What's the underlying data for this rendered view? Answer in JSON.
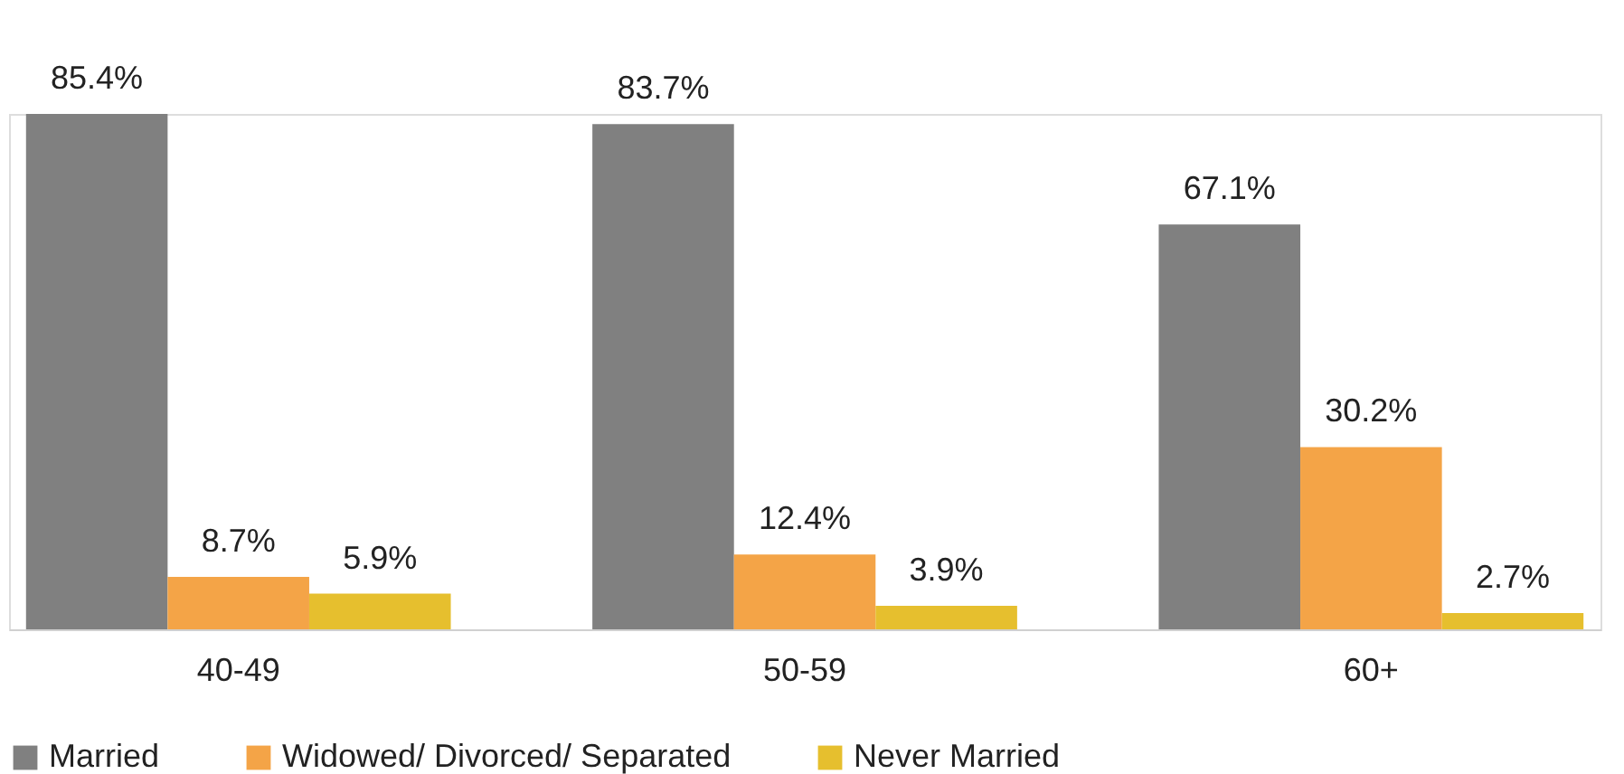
{
  "chart_data": {
    "type": "bar",
    "categories": [
      "40-49",
      "50-59",
      "60+"
    ],
    "series": [
      {
        "name": "Married",
        "color": "#808080",
        "values": [
          85.4,
          83.7,
          67.1
        ],
        "value_labels": [
          "85.4%",
          "83.7%",
          "67.1%"
        ]
      },
      {
        "name": "Widowed/ Divorced/ Separated",
        "color": "#f4a447",
        "values": [
          8.7,
          12.4,
          30.2
        ],
        "value_labels": [
          "8.7%",
          "12.4%",
          "30.2%"
        ]
      },
      {
        "name": "Never Married",
        "color": "#e6bf2e",
        "values": [
          5.9,
          3.9,
          2.7
        ],
        "value_labels": [
          "5.9%",
          "3.9%",
          "2.7%"
        ]
      }
    ],
    "legend": "bottom",
    "grid": false
  }
}
